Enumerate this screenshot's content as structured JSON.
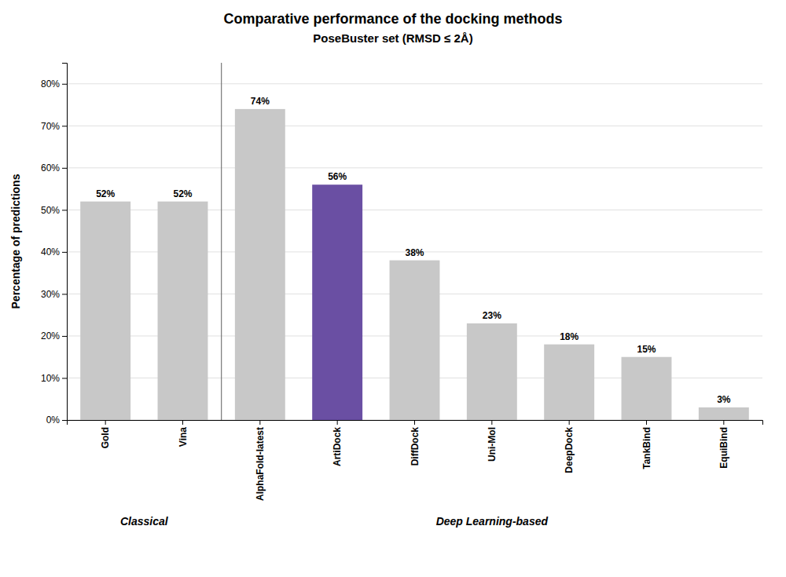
{
  "chart_data": {
    "type": "bar",
    "title": "Comparative performance of the docking methods",
    "subtitle": "PoseBuster set (RMSD ≤ 2Å)",
    "ylabel": "Percentage of predictions",
    "categories": [
      "Gold",
      "Vina",
      "AlphaFold-latest",
      "ArtiDock",
      "DiffDock",
      "Uni-Mol",
      "DeepDock",
      "TankBind",
      "EquiBind"
    ],
    "values": [
      52,
      52,
      74,
      56,
      38,
      23,
      18,
      15,
      3
    ],
    "value_labels": [
      "52%",
      "52%",
      "74%",
      "56%",
      "38%",
      "23%",
      "18%",
      "15%",
      "3%"
    ],
    "colors": [
      "#c8c8c8",
      "#c8c8c8",
      "#c8c8c8",
      "#6a4fa3",
      "#c8c8c8",
      "#c8c8c8",
      "#c8c8c8",
      "#c8c8c8",
      "#c8c8c8"
    ],
    "ylim": [
      0,
      85
    ],
    "yticks": [
      {
        "value": 0,
        "label": "0%"
      },
      {
        "value": 10,
        "label": "10%"
      },
      {
        "value": 20,
        "label": "20%"
      },
      {
        "value": 30,
        "label": "30%"
      },
      {
        "value": 40,
        "label": "40%"
      },
      {
        "value": 50,
        "label": "50%"
      },
      {
        "value": 60,
        "label": "60%"
      },
      {
        "value": 70,
        "label": "70%"
      },
      {
        "value": 80,
        "label": "80%"
      }
    ],
    "grid": true,
    "data_labels": true,
    "annotations": [
      {
        "text": "Classical",
        "categories": [
          "Gold",
          "Vina"
        ]
      },
      {
        "text": "Deep Learning-based",
        "categories": [
          "AlphaFold-latest",
          "ArtiDock",
          "DiffDock",
          "Uni-Mol",
          "DeepDock",
          "TankBind",
          "EquiBind"
        ]
      }
    ]
  }
}
